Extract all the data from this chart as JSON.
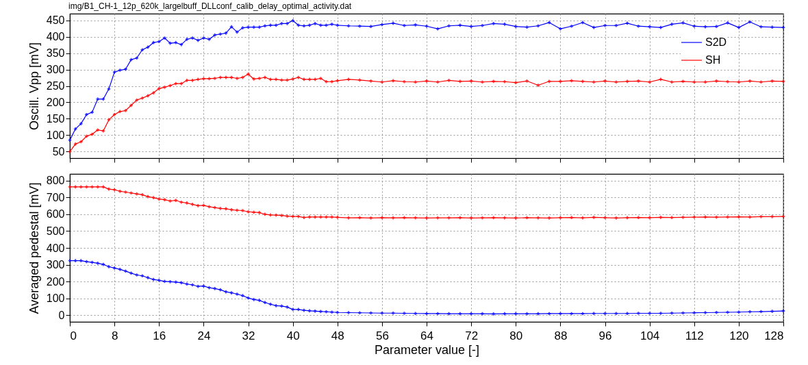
{
  "chart_data": [
    {
      "type": "line",
      "title": "img/B1_CH-1_12p_620k_largelbuff_DLLconf_calib_delay_optimal_activity.dat",
      "ylabel": "Oscill. Vpp [mV]",
      "x": [
        0,
        1,
        2,
        3,
        4,
        5,
        6,
        7,
        8,
        9,
        10,
        11,
        12,
        13,
        14,
        15,
        16,
        17,
        18,
        19,
        20,
        21,
        22,
        23,
        24,
        25,
        26,
        27,
        28,
        29,
        30,
        31,
        32,
        33,
        34,
        35,
        36,
        37,
        38,
        39,
        40,
        41,
        42,
        43,
        44,
        45,
        46,
        47,
        48,
        50,
        52,
        54,
        56,
        58,
        60,
        62,
        64,
        66,
        68,
        70,
        72,
        74,
        76,
        78,
        80,
        82,
        84,
        86,
        88,
        90,
        92,
        94,
        96,
        98,
        100,
        102,
        104,
        106,
        108,
        110,
        112,
        114,
        116,
        118,
        120,
        122,
        124,
        126,
        128
      ],
      "series": [
        {
          "name": "S2D",
          "color": "#0000ff",
          "values": [
            85,
            119,
            135,
            163,
            170,
            210,
            210,
            241,
            292,
            298,
            301,
            330,
            335,
            360,
            368,
            382,
            385,
            396,
            380,
            382,
            376,
            392,
            396,
            389,
            396,
            392,
            405,
            408,
            411,
            430,
            414,
            427,
            429,
            429,
            429,
            433,
            435,
            435,
            440,
            440,
            449,
            435,
            433,
            435,
            440,
            435,
            435,
            438,
            435,
            433,
            432,
            431,
            437,
            441,
            434,
            436,
            432,
            424,
            433,
            435,
            431,
            434,
            440,
            438,
            431,
            429,
            433,
            443,
            424,
            432,
            443,
            428,
            434,
            434,
            441,
            432,
            430,
            428,
            438,
            442,
            432,
            430,
            431,
            442,
            428,
            445,
            430,
            429,
            428
          ]
        },
        {
          "name": "SH",
          "color": "#ff0000",
          "values": [
            50,
            73,
            80,
            97,
            103,
            116,
            113,
            147,
            163,
            172,
            175,
            191,
            207,
            213,
            220,
            229,
            242,
            246,
            251,
            257,
            257,
            267,
            267,
            270,
            272,
            272,
            273,
            276,
            276,
            276,
            273,
            276,
            286,
            271,
            273,
            276,
            270,
            270,
            268,
            268,
            271,
            276,
            270,
            270,
            270,
            273,
            263,
            263,
            266,
            270,
            268,
            265,
            262,
            266,
            263,
            262,
            265,
            262,
            267,
            264,
            265,
            262,
            264,
            263,
            260,
            265,
            252,
            264,
            264,
            266,
            264,
            262,
            265,
            262,
            264,
            265,
            262,
            270,
            262,
            264,
            262,
            262,
            265,
            263,
            262,
            265,
            262,
            265,
            264
          ]
        }
      ],
      "xlim": [
        0,
        128
      ],
      "xticks": [
        0,
        8,
        16,
        24,
        32,
        40,
        48,
        56,
        64,
        72,
        80,
        88,
        96,
        104,
        112,
        120,
        128
      ],
      "ylim": [
        30,
        470
      ],
      "yticks": [
        50,
        100,
        150,
        200,
        250,
        300,
        350,
        400,
        450
      ],
      "grid": true,
      "legend": "top right",
      "tick_labels": "y",
      "marker": "cross"
    },
    {
      "type": "line",
      "xlabel": "Parameter value [-]",
      "ylabel": "Averaged pedestal [mV]",
      "x": [
        0,
        1,
        2,
        3,
        4,
        5,
        6,
        7,
        8,
        9,
        10,
        11,
        12,
        13,
        14,
        15,
        16,
        17,
        18,
        19,
        20,
        21,
        22,
        23,
        24,
        25,
        26,
        27,
        28,
        29,
        30,
        31,
        32,
        33,
        34,
        35,
        36,
        37,
        38,
        39,
        40,
        41,
        42,
        43,
        44,
        45,
        46,
        47,
        48,
        50,
        52,
        54,
        56,
        58,
        60,
        62,
        64,
        66,
        68,
        70,
        72,
        74,
        76,
        78,
        80,
        82,
        84,
        86,
        88,
        90,
        92,
        94,
        96,
        98,
        100,
        102,
        104,
        106,
        108,
        110,
        112,
        114,
        116,
        118,
        120,
        122,
        124,
        126,
        128
      ],
      "series": [
        {
          "name": "S2D",
          "color": "#0000ff",
          "values": [
            324,
            324,
            324,
            318,
            314,
            309,
            302,
            288,
            280,
            272,
            262,
            250,
            239,
            234,
            223,
            212,
            207,
            201,
            199,
            197,
            193,
            185,
            180,
            171,
            173,
            163,
            158,
            151,
            139,
            133,
            125,
            116,
            102,
            93,
            88,
            75,
            65,
            56,
            54,
            48,
            34,
            34,
            29,
            26,
            24,
            22,
            20,
            18,
            16,
            15,
            14,
            13,
            12,
            12,
            11,
            10,
            9,
            9,
            8,
            8,
            8,
            8,
            7,
            8,
            8,
            8,
            8,
            9,
            9,
            9,
            9,
            10,
            10,
            10,
            10,
            11,
            11,
            11,
            12,
            13,
            14,
            15,
            16,
            17,
            18,
            20,
            21,
            23,
            25
          ]
        },
        {
          "name": "SH",
          "color": "#ff0000",
          "values": [
            763,
            763,
            763,
            763,
            763,
            763,
            763,
            750,
            746,
            737,
            732,
            727,
            721,
            716,
            705,
            699,
            691,
            687,
            679,
            683,
            672,
            667,
            659,
            651,
            653,
            645,
            640,
            635,
            633,
            627,
            624,
            622,
            615,
            612,
            610,
            600,
            596,
            595,
            593,
            589,
            587,
            587,
            581,
            584,
            584,
            584,
            584,
            584,
            582,
            579,
            580,
            578,
            580,
            579,
            580,
            579,
            578,
            579,
            579,
            580,
            578,
            579,
            580,
            579,
            578,
            580,
            579,
            578,
            580,
            581,
            579,
            582,
            580,
            578,
            580,
            581,
            580,
            582,
            581,
            582,
            583,
            584,
            583,
            584,
            585,
            584,
            586,
            586,
            587
          ]
        }
      ],
      "xlim": [
        0,
        128
      ],
      "xticks": [
        0,
        8,
        16,
        24,
        32,
        40,
        48,
        56,
        64,
        72,
        80,
        88,
        96,
        104,
        112,
        120,
        128
      ],
      "ylim": [
        -40,
        840
      ],
      "yticks": [
        0,
        100,
        200,
        300,
        400,
        500,
        600,
        700,
        800
      ],
      "grid": true,
      "legend": "top right",
      "marker": "cross"
    }
  ]
}
